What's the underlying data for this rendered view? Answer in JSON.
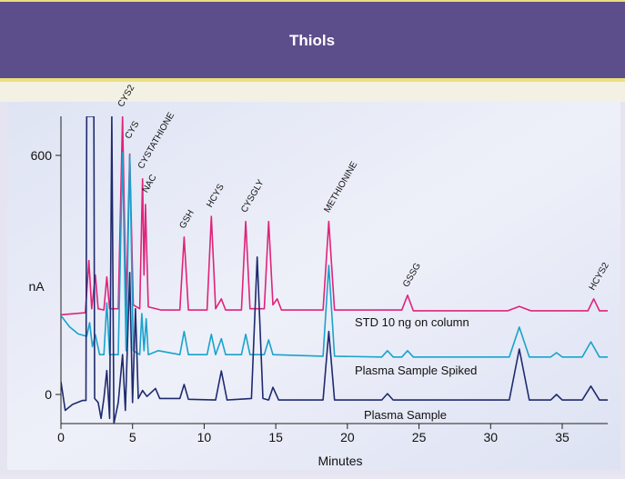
{
  "chart_data": {
    "type": "line",
    "title": "Thiols",
    "ylabel": "nA",
    "xlabel": "Minutes",
    "xlim": [
      0,
      38.2
    ],
    "ylim": [
      -73,
      698
    ],
    "xticks": [
      0,
      5,
      10,
      15,
      20,
      25,
      30,
      35
    ],
    "yticks": [
      0,
      600
    ],
    "series": [
      {
        "name": "STD 10 ng on column",
        "color": "#e0237a",
        "x": [
          0,
          1.7,
          1.95,
          2.15,
          2.4,
          2.6,
          3.0,
          3.2,
          3.4,
          4.0,
          4.3,
          4.55,
          4.8,
          5.05,
          5.5,
          5.7,
          5.8,
          5.9,
          6.1,
          7,
          8.3,
          8.6,
          8.9,
          10.2,
          10.5,
          10.8,
          11.2,
          11.5,
          12.6,
          12.9,
          13.2,
          14.2,
          14.5,
          14.8,
          15.1,
          15.4,
          18.3,
          18.7,
          19.1,
          23.8,
          24.2,
          24.6,
          31.2,
          32,
          32.8,
          36.8,
          37.2,
          37.6,
          38.2
        ],
        "values": [
          200,
          205,
          336,
          215,
          300,
          215,
          212,
          295,
          215,
          215,
          698,
          220,
          603,
          225,
          215,
          541,
          300,
          477,
          220,
          212,
          212,
          395,
          212,
          212,
          447,
          215,
          240,
          212,
          212,
          434,
          215,
          215,
          434,
          225,
          240,
          212,
          212,
          434,
          212,
          212,
          249,
          210,
          210,
          221,
          210,
          210,
          240,
          210,
          210
        ]
      },
      {
        "name": "Plasma Sample Spiked",
        "color": "#19a3cc",
        "x": [
          0,
          0.6,
          1.2,
          1.8,
          2.0,
          2.2,
          2.4,
          2.7,
          3.0,
          3.2,
          3.4,
          4.0,
          4.3,
          4.55,
          4.8,
          5.05,
          5.5,
          5.65,
          5.8,
          5.95,
          6.1,
          6.8,
          8.3,
          8.6,
          8.9,
          10.2,
          10.5,
          10.8,
          11.2,
          11.5,
          12.6,
          12.9,
          13.2,
          14.2,
          14.5,
          14.8,
          18.3,
          18.7,
          19.1,
          22.4,
          22.8,
          23.2,
          23.8,
          24.2,
          24.6,
          31.3,
          32,
          32.7,
          34.2,
          34.6,
          35,
          36.4,
          37,
          37.6,
          38.2
        ],
        "values": [
          198,
          170,
          152,
          146,
          180,
          120,
          150,
          100,
          100,
          230,
          100,
          100,
          607,
          110,
          600,
          110,
          100,
          203,
          110,
          190,
          100,
          110,
          100,
          158,
          100,
          100,
          151,
          100,
          140,
          100,
          100,
          151,
          100,
          100,
          137,
          100,
          96,
          324,
          96,
          94,
          110,
          94,
          94,
          110,
          94,
          94,
          169,
          94,
          94,
          105,
          94,
          94,
          132,
          94,
          94
        ]
      },
      {
        "name": "Plasma Sample",
        "color": "#1f2a6e",
        "x": [
          0,
          0.3,
          0.8,
          1.5,
          1.75,
          1.8,
          2.3,
          2.35,
          2.6,
          2.8,
          3.0,
          3.2,
          3.4,
          3.55,
          3.7,
          4.0,
          4.3,
          4.5,
          4.8,
          5.0,
          5.2,
          5.4,
          5.7,
          6.0,
          6.6,
          6.9,
          8.3,
          8.6,
          8.9,
          10.8,
          11.2,
          11.6,
          13.3,
          13.7,
          14.1,
          14.5,
          14.8,
          15.2,
          18.3,
          18.7,
          19.1,
          22.4,
          22.8,
          23.2,
          31.3,
          32,
          32.7,
          34.2,
          34.6,
          35,
          36.4,
          37,
          37.6,
          38.2
        ],
        "values": [
          32,
          -40,
          -25,
          -15,
          -15,
          698,
          698,
          -10,
          -20,
          -60,
          -10,
          60,
          -60,
          698,
          -73,
          -20,
          100,
          -40,
          306,
          -20,
          215,
          -10,
          10,
          -5,
          15,
          -10,
          -10,
          25,
          -12,
          -14,
          59,
          -14,
          -10,
          345,
          -10,
          -14,
          18,
          -14,
          -14,
          158,
          -14,
          -14,
          2,
          -14,
          -14,
          114,
          -14,
          -14,
          0,
          -14,
          -14,
          21,
          -14,
          -14
        ]
      }
    ],
    "annotations": [
      {
        "text": "CYS2",
        "x": 4.3,
        "y": 720
      },
      {
        "text": "CYS",
        "x": 4.8,
        "y": 640
      },
      {
        "text": "CYSTATHIONE",
        "x": 5.7,
        "y": 565
      },
      {
        "text": "NAC",
        "x": 6.0,
        "y": 505
      },
      {
        "text": "GSH",
        "x": 8.6,
        "y": 415
      },
      {
        "text": "HCYS",
        "x": 10.5,
        "y": 468
      },
      {
        "text": "CYSGLY",
        "x": 12.9,
        "y": 455
      },
      {
        "text": "METHIONINE",
        "x": 18.7,
        "y": 455
      },
      {
        "text": "GSSG",
        "x": 24.2,
        "y": 268
      },
      {
        "text": "HCYS2",
        "x": 37.2,
        "y": 260
      }
    ]
  }
}
